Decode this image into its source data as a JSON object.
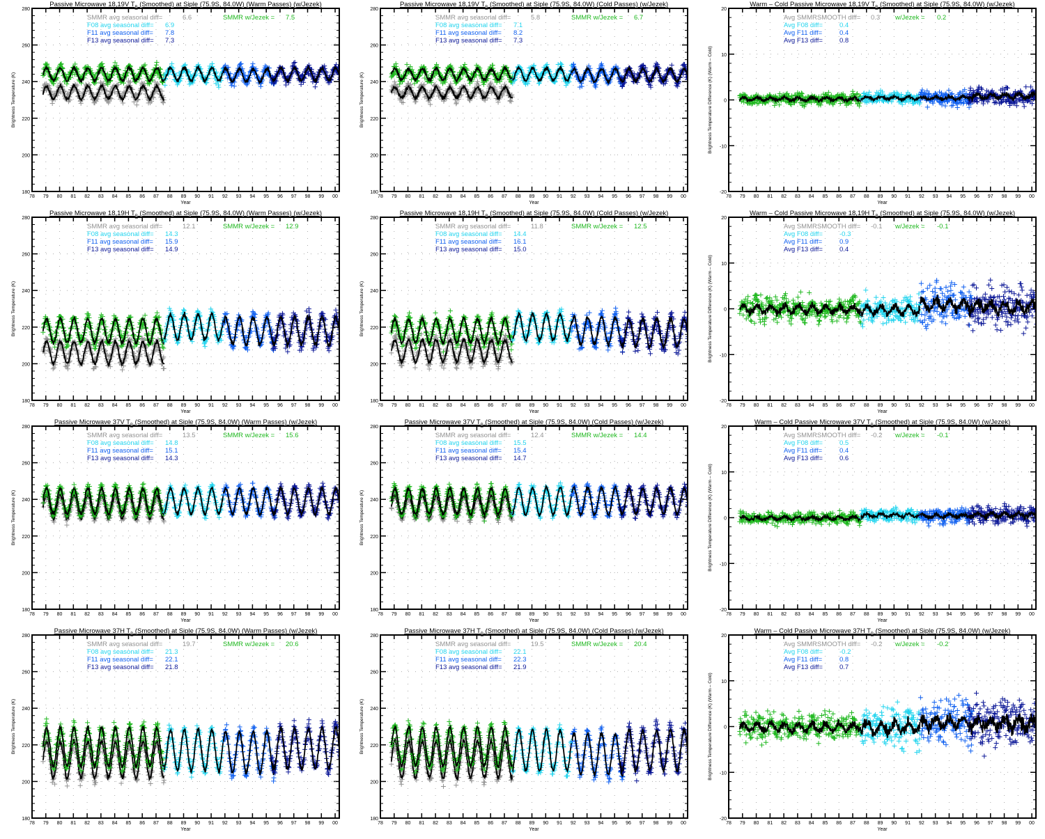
{
  "colors": {
    "smmr": "#929292",
    "jezek": "#1fb81f",
    "f08": "#22d4ee",
    "f11": "#1060f0",
    "f13": "#0a1696",
    "smooth": "#000000",
    "axis": "#000000"
  },
  "axis": {
    "xlabel": "Year",
    "xticks": [
      "78",
      "79",
      "80",
      "81",
      "82",
      "83",
      "84",
      "85",
      "86",
      "87",
      "88",
      "89",
      "90",
      "91",
      "92",
      "93",
      "94",
      "95",
      "96",
      "97",
      "98",
      "99",
      "00"
    ]
  },
  "chart_data": [
    {
      "type": "scatter",
      "title_pre": "Passive Microwave 18,19V T",
      "title_sub": "B",
      "title_post": " (Smoothed) at Siple (75.9S, 84.0W) (Warm Passes) (w/Jezek)",
      "ylabel": "Brightness Temperature (K)",
      "xlim": [
        78,
        100.3
      ],
      "ylim": [
        180,
        280
      ],
      "yticks": [
        "180",
        "200",
        "220",
        "240",
        "260",
        "280"
      ],
      "stats": [
        {
          "label": "SMMR avg seasonal diff=",
          "value": "6.6",
          "series": "smmr"
        },
        {
          "label": "F08 avg seasonal diff=",
          "value": "6.9",
          "series": "f08"
        },
        {
          "label": "F11 avg seasonal diff=",
          "value": "7.8",
          "series": "f11"
        },
        {
          "label": "F13 avg seasonal diff=",
          "value": "7.3",
          "series": "f13"
        }
      ],
      "jezek": {
        "label": "SMMR w/Jezek =",
        "value": "7.5"
      },
      "series": {
        "smmr": {
          "mean": 234,
          "amp": 3.5,
          "noise": 2
        },
        "jezek": {
          "mean": 244,
          "amp": 3.5,
          "noise": 2
        },
        "f08": {
          "mean": 244,
          "amp": 3.5,
          "noise": 2
        },
        "f11": {
          "mean": 243.5,
          "amp": 3.5,
          "noise": 2
        },
        "f13": {
          "mean": 244,
          "amp": 3.5,
          "noise": 2
        }
      }
    },
    {
      "type": "scatter",
      "title_pre": "Passive Microwave 18,19V T",
      "title_sub": "B",
      "title_post": " (Smoothed) at Siple (75.9S, 84.0W) (Cold Passes) (w/Jezek)",
      "ylabel": "Brightness Temperature (K)",
      "xlim": [
        78,
        100.3
      ],
      "ylim": [
        180,
        280
      ],
      "yticks": [
        "180",
        "200",
        "220",
        "240",
        "260",
        "280"
      ],
      "stats": [
        {
          "label": "SMMR avg seasonal diff=",
          "value": "5.8",
          "series": "smmr"
        },
        {
          "label": "F08 avg seasonal diff=",
          "value": "7.1",
          "series": "f08"
        },
        {
          "label": "F11 avg seasonal diff=",
          "value": "8.2",
          "series": "f11"
        },
        {
          "label": "F13 avg seasonal diff=",
          "value": "7.3",
          "series": "f13"
        }
      ],
      "jezek": {
        "label": "SMMR w/Jezek =",
        "value": "6.7"
      },
      "series": {
        "smmr": {
          "mean": 234,
          "amp": 3,
          "noise": 2
        },
        "jezek": {
          "mean": 244,
          "amp": 3,
          "noise": 2
        },
        "f08": {
          "mean": 244,
          "amp": 3.5,
          "noise": 2
        },
        "f11": {
          "mean": 243.5,
          "amp": 3.5,
          "noise": 2
        },
        "f13": {
          "mean": 243.5,
          "amp": 3.5,
          "noise": 2
        }
      }
    },
    {
      "type": "scatter",
      "title_pre": "Warm – Cold Passive Microwave 18,19V T",
      "title_sub": "B",
      "title_post": " (Smoothed) at Siple (75.9S, 84.0W) (w/Jezek)",
      "ylabel": "Brightness Temperature Difference (K) (Warm – Cold)",
      "xlim": [
        78,
        100.3
      ],
      "ylim": [
        -20,
        20
      ],
      "yticks": [
        "-20",
        "-10",
        "0",
        "10",
        "20"
      ],
      "stats": [
        {
          "label": "Avg SMMRSMOOTH diff=",
          "value": "0.3",
          "series": "smmr"
        },
        {
          "label": "Avg F08 diff=",
          "value": "0.4",
          "series": "f08"
        },
        {
          "label": "Avg F11 diff=",
          "value": "0.4",
          "series": "f11"
        },
        {
          "label": "Avg F13 diff=",
          "value": "0.8",
          "series": "f13"
        }
      ],
      "jezek": {
        "label": "w/Jezek =",
        "value": "0.2"
      },
      "series": {
        "jezek": {
          "mean": 0.2,
          "amp": 0.3,
          "noise": 0.8
        },
        "f08": {
          "mean": 0.4,
          "amp": 0.3,
          "noise": 0.8
        },
        "f11": {
          "mean": 0.4,
          "amp": 0.3,
          "noise": 1
        },
        "f13": {
          "mean": 0.8,
          "amp": 0.4,
          "noise": 1.3
        }
      }
    },
    {
      "type": "scatter",
      "title_pre": "Passive Microwave 18,19H T",
      "title_sub": "B",
      "title_post": " (Smoothed) at Siple (75.9S, 84.0W) (Warm Passes) (w/Jezek)",
      "ylabel": "Brightness Temperature (K)",
      "xlim": [
        78,
        100.3
      ],
      "ylim": [
        180,
        280
      ],
      "yticks": [
        "180",
        "200",
        "220",
        "240",
        "260",
        "280"
      ],
      "stats": [
        {
          "label": "SMMR avg seasonal diff=",
          "value": "12.1",
          "series": "smmr"
        },
        {
          "label": "F08 avg seasonal diff=",
          "value": "14.3",
          "series": "f08"
        },
        {
          "label": "F11 avg seasonal diff=",
          "value": "15.9",
          "series": "f11"
        },
        {
          "label": "F13 avg seasonal diff=",
          "value": "14.9",
          "series": "f13"
        }
      ],
      "jezek": {
        "label": "SMMR w/Jezek =",
        "value": "12.9"
      },
      "series": {
        "smmr": {
          "mean": 206,
          "amp": 6,
          "noise": 2.5
        },
        "jezek": {
          "mean": 218,
          "amp": 6.5,
          "noise": 2.5
        },
        "f08": {
          "mean": 220,
          "amp": 7,
          "noise": 2.5
        },
        "f11": {
          "mean": 218,
          "amp": 7.5,
          "noise": 3
        },
        "f13": {
          "mean": 218,
          "amp": 7.5,
          "noise": 3.5
        }
      }
    },
    {
      "type": "scatter",
      "title_pre": "Passive Microwave 18,19H T",
      "title_sub": "B",
      "title_post": " (Smoothed) at Siple (75.9S, 84.0W) (Cold Passes) (w/Jezek)",
      "ylabel": "Brightness Temperature (K)",
      "xlim": [
        78,
        100.3
      ],
      "ylim": [
        180,
        280
      ],
      "yticks": [
        "180",
        "200",
        "220",
        "240",
        "260",
        "280"
      ],
      "stats": [
        {
          "label": "SMMR avg seasonal diff=",
          "value": "11.8",
          "series": "smmr"
        },
        {
          "label": "F08 avg seasonal diff=",
          "value": "14.4",
          "series": "f08"
        },
        {
          "label": "F11 avg seasonal diff=",
          "value": "16.1",
          "series": "f11"
        },
        {
          "label": "F13 avg seasonal diff=",
          "value": "15.0",
          "series": "f13"
        }
      ],
      "jezek": {
        "label": "SMMR w/Jezek =",
        "value": "12.5"
      },
      "series": {
        "smmr": {
          "mean": 207,
          "amp": 6,
          "noise": 2.5
        },
        "jezek": {
          "mean": 218,
          "amp": 6.5,
          "noise": 2.5
        },
        "f08": {
          "mean": 220,
          "amp": 7,
          "noise": 2.5
        },
        "f11": {
          "mean": 218,
          "amp": 7.5,
          "noise": 3
        },
        "f13": {
          "mean": 217,
          "amp": 7.5,
          "noise": 3.5
        }
      }
    },
    {
      "type": "scatter",
      "title_pre": "Warm – Cold Passive Microwave 18,19H T",
      "title_sub": "B",
      "title_post": " (Smoothed) at Siple (75.9S, 84.0W) (w/Jezek)",
      "ylabel": "Brightness Temperature Difference (K) (Warm – Cold)",
      "xlim": [
        78,
        100.3
      ],
      "ylim": [
        -20,
        20
      ],
      "yticks": [
        "-20",
        "-10",
        "0",
        "10",
        "20"
      ],
      "stats": [
        {
          "label": "Avg SMMRSMOOTH diff=",
          "value": "-0.1",
          "series": "smmr"
        },
        {
          "label": "Avg F08 diff=",
          "value": "-0.3",
          "series": "f08"
        },
        {
          "label": "Avg F11 diff=",
          "value": "0.9",
          "series": "f11"
        },
        {
          "label": "Avg F13 diff=",
          "value": "0.4",
          "series": "f13"
        }
      ],
      "jezek": {
        "label": "w/Jezek =",
        "value": "-0.1"
      },
      "series": {
        "jezek": {
          "mean": -0.1,
          "amp": 0.8,
          "noise": 1.8
        },
        "f08": {
          "mean": -0.3,
          "amp": 0.8,
          "noise": 2
        },
        "f11": {
          "mean": 0.9,
          "amp": 1,
          "noise": 3
        },
        "f13": {
          "mean": 0.4,
          "amp": 1,
          "noise": 3
        }
      }
    },
    {
      "type": "scatter",
      "title_pre": "Passive Microwave 37V T",
      "title_sub": "B",
      "title_post": " (Smoothed) at Siple (75.9S, 84.0W) (Warm Passes) (w/Jezek)",
      "ylabel": "Brightness Temperature (K)",
      "xlim": [
        78,
        100.3
      ],
      "ylim": [
        180,
        280
      ],
      "yticks": [
        "180",
        "200",
        "220",
        "240",
        "260",
        "280"
      ],
      "stats": [
        {
          "label": "SMMR avg seasonal diff=",
          "value": "13.5",
          "series": "smmr"
        },
        {
          "label": "F08 avg seasonal diff=",
          "value": "14.8",
          "series": "f08"
        },
        {
          "label": "F11 avg seasonal diff=",
          "value": "15.1",
          "series": "f11"
        },
        {
          "label": "F13 avg seasonal diff=",
          "value": "14.3",
          "series": "f13"
        }
      ],
      "jezek": {
        "label": "SMMR w/Jezek =",
        "value": "15.6"
      },
      "series": {
        "smmr": {
          "mean": 236,
          "amp": 6.5,
          "noise": 2
        },
        "jezek": {
          "mean": 239,
          "amp": 7,
          "noise": 2
        },
        "f08": {
          "mean": 239,
          "amp": 7,
          "noise": 2
        },
        "f11": {
          "mean": 239,
          "amp": 7,
          "noise": 2
        },
        "f13": {
          "mean": 239,
          "amp": 7,
          "noise": 2
        }
      }
    },
    {
      "type": "scatter",
      "title_pre": "Passive Microwave 37V T",
      "title_sub": "B",
      "title_post": " (Smoothed) at Siple (75.9S, 84.0W) (Cold Passes) (w/Jezek)",
      "ylabel": "Brightness Temperature (K)",
      "xlim": [
        78,
        100.3
      ],
      "ylim": [
        180,
        280
      ],
      "yticks": [
        "180",
        "200",
        "220",
        "240",
        "260",
        "280"
      ],
      "stats": [
        {
          "label": "SMMR avg seasonal diff=",
          "value": "12.4",
          "series": "smmr"
        },
        {
          "label": "F08 avg seasonal diff=",
          "value": "15.5",
          "series": "f08"
        },
        {
          "label": "F11 avg seasonal diff=",
          "value": "15.4",
          "series": "f11"
        },
        {
          "label": "F13 avg seasonal diff=",
          "value": "14.7",
          "series": "f13"
        }
      ],
      "jezek": {
        "label": "SMMR w/Jezek =",
        "value": "14.4"
      },
      "series": {
        "smmr": {
          "mean": 236,
          "amp": 6,
          "noise": 2
        },
        "jezek": {
          "mean": 239,
          "amp": 7,
          "noise": 2
        },
        "f08": {
          "mean": 239,
          "amp": 7.5,
          "noise": 2
        },
        "f11": {
          "mean": 239,
          "amp": 7.5,
          "noise": 2
        },
        "f13": {
          "mean": 239,
          "amp": 7,
          "noise": 2
        }
      }
    },
    {
      "type": "scatter",
      "title_pre": "Warm – Cold Passive Microwave 37V T",
      "title_sub": "B",
      "title_post": " (Smoothed) at Siple (75.9S, 84.0W) (w/Jezek)",
      "ylabel": "Brightness Temperature Difference (K) (Warm – Cold)",
      "xlim": [
        78,
        100.3
      ],
      "ylim": [
        -20,
        20
      ],
      "yticks": [
        "-20",
        "-10",
        "0",
        "10",
        "20"
      ],
      "stats": [
        {
          "label": "Avg SMMRSMOOTH diff=",
          "value": "-0.2",
          "series": "smmr"
        },
        {
          "label": "Avg F08 diff=",
          "value": "0.5",
          "series": "f08"
        },
        {
          "label": "Avg F11 diff=",
          "value": "0.4",
          "series": "f11"
        },
        {
          "label": "Avg F13 diff=",
          "value": "0.6",
          "series": "f13"
        }
      ],
      "jezek": {
        "label": "w/Jezek =",
        "value": "-0.1"
      },
      "series": {
        "jezek": {
          "mean": -0.1,
          "amp": 0.3,
          "noise": 0.9
        },
        "f08": {
          "mean": 0.5,
          "amp": 0.3,
          "noise": 0.9
        },
        "f11": {
          "mean": 0.4,
          "amp": 0.3,
          "noise": 1.1
        },
        "f13": {
          "mean": 0.6,
          "amp": 0.4,
          "noise": 1.3
        }
      }
    },
    {
      "type": "scatter",
      "title_pre": "Passive Microwave 37H T",
      "title_sub": "B",
      "title_post": " (Smoothed) at Siple (75.9S, 84.0W) (Warm Passes) (w/Jezek)",
      "ylabel": "Brightness Temperature (K)",
      "xlim": [
        78,
        100.3
      ],
      "ylim": [
        180,
        280
      ],
      "yticks": [
        "180",
        "200",
        "220",
        "240",
        "260",
        "280"
      ],
      "stats": [
        {
          "label": "SMMR avg seasonal diff=",
          "value": "19.7",
          "series": "smmr"
        },
        {
          "label": "F08 avg seasonal diff=",
          "value": "21.3",
          "series": "f08"
        },
        {
          "label": "F11 avg seasonal diff=",
          "value": "22.1",
          "series": "f11"
        },
        {
          "label": "F13 avg seasonal diff=",
          "value": "21.8",
          "series": "f13"
        }
      ],
      "jezek": {
        "label": "SMMR w/Jezek =",
        "value": "20.6"
      },
      "series": {
        "smmr": {
          "mean": 212,
          "amp": 10,
          "noise": 3
        },
        "jezek": {
          "mean": 219,
          "amp": 10.5,
          "noise": 3
        },
        "f08": {
          "mean": 217,
          "amp": 11,
          "noise": 3
        },
        "f11": {
          "mean": 216,
          "amp": 11,
          "noise": 3
        },
        "f13": {
          "mean": 218,
          "amp": 11,
          "noise": 3.5
        }
      }
    },
    {
      "type": "scatter",
      "title_pre": "Passive Microwave 37H T",
      "title_sub": "B",
      "title_post": " (Smoothed) at Siple (75.9S, 84.0W) (Cold Passes) (w/Jezek)",
      "ylabel": "Brightness Temperature (K)",
      "xlim": [
        78,
        100.3
      ],
      "ylim": [
        180,
        280
      ],
      "yticks": [
        "180",
        "200",
        "220",
        "240",
        "260",
        "280"
      ],
      "stats": [
        {
          "label": "SMMR avg seasonal diff=",
          "value": "19.5",
          "series": "smmr"
        },
        {
          "label": "F08 avg seasonal diff=",
          "value": "22.1",
          "series": "f08"
        },
        {
          "label": "F11 avg seasonal diff=",
          "value": "22.3",
          "series": "f11"
        },
        {
          "label": "F13 avg seasonal diff=",
          "value": "21.9",
          "series": "f13"
        }
      ],
      "jezek": {
        "label": "SMMR w/Jezek =",
        "value": "20.4"
      },
      "series": {
        "smmr": {
          "mean": 212,
          "amp": 10,
          "noise": 3
        },
        "jezek": {
          "mean": 219,
          "amp": 10.5,
          "noise": 3
        },
        "f08": {
          "mean": 217,
          "amp": 11,
          "noise": 3
        },
        "f11": {
          "mean": 215,
          "amp": 11,
          "noise": 3
        },
        "f13": {
          "mean": 217,
          "amp": 11,
          "noise": 3.5
        }
      }
    },
    {
      "type": "scatter",
      "title_pre": "Warm – Cold Passive Microwave 37H T",
      "title_sub": "B",
      "title_post": " (Smoothed) at Siple (75.9S, 84.0W) (w/Jezek)",
      "ylabel": "Brightness Temperature Difference (K) (Warm – Cold)",
      "xlim": [
        78,
        100.3
      ],
      "ylim": [
        -20,
        20
      ],
      "yticks": [
        "-20",
        "-10",
        "0",
        "10",
        "20"
      ],
      "stats": [
        {
          "label": "Avg SMMRSMOOTH diff=",
          "value": "-0.2",
          "series": "smmr"
        },
        {
          "label": "Avg F08 diff=",
          "value": "-0.2",
          "series": "f08"
        },
        {
          "label": "Avg F11 diff=",
          "value": "0.8",
          "series": "f11"
        },
        {
          "label": "Avg F13 diff=",
          "value": "0.7",
          "series": "f13"
        }
      ],
      "jezek": {
        "label": "w/Jezek =",
        "value": "-0.2"
      },
      "series": {
        "jezek": {
          "mean": -0.2,
          "amp": 0.8,
          "noise": 2
        },
        "f08": {
          "mean": -0.2,
          "amp": 1,
          "noise": 3
        },
        "f11": {
          "mean": 0.8,
          "amp": 1,
          "noise": 3.5
        },
        "f13": {
          "mean": 0.7,
          "amp": 1,
          "noise": 3.5
        }
      }
    }
  ],
  "sensor_periods": {
    "smmr": [
      78.8,
      87.6
    ],
    "jezek": [
      78.8,
      87.6
    ],
    "f08": [
      87.6,
      91.9
    ],
    "f11": [
      91.9,
      95.7
    ],
    "f13": [
      95.4,
      100.5
    ]
  }
}
